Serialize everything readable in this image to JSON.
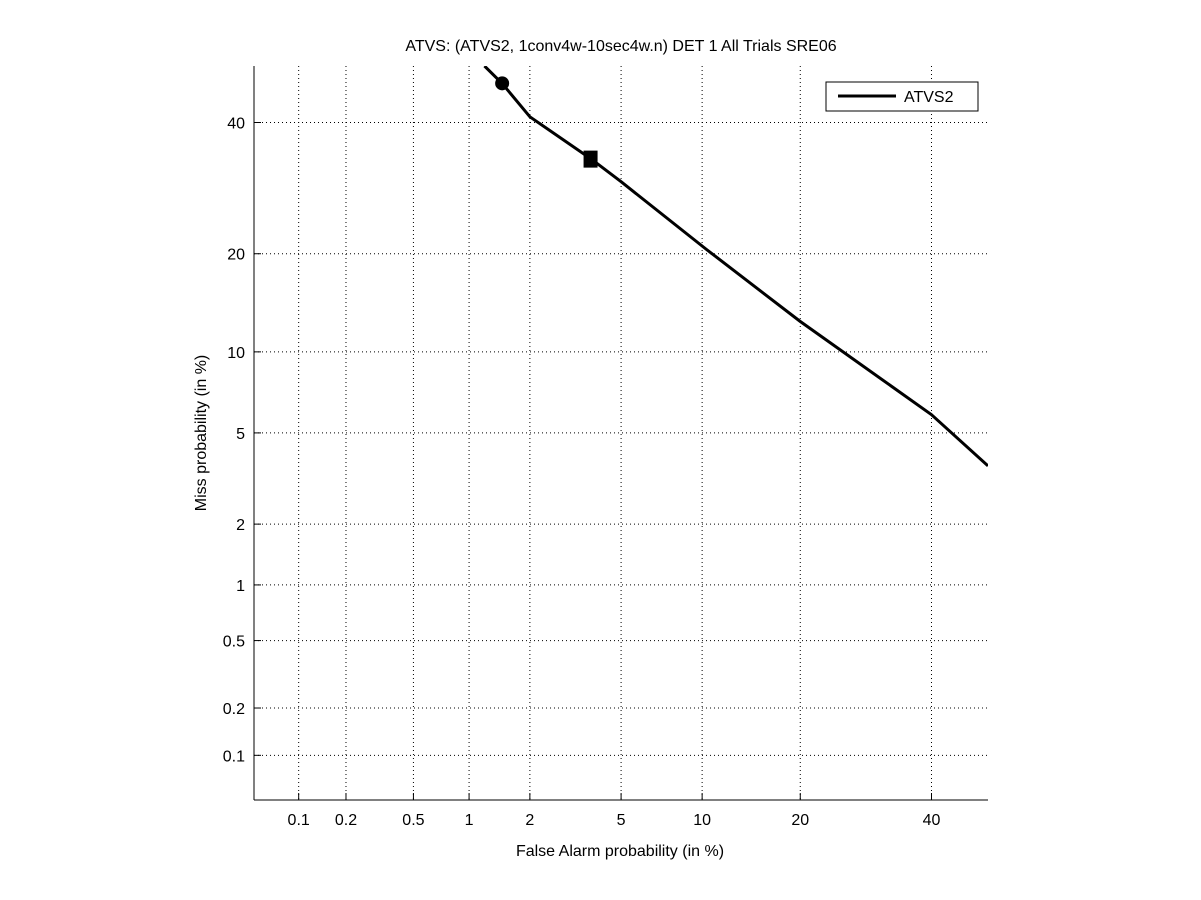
{
  "chart_data": {
    "type": "line",
    "title": "ATVS: (ATVS2, 1conv4w-10sec4w.n) DET 1 All Trials SRE06",
    "xlabel": "False Alarm probability (in %)",
    "ylabel": "Miss probability (in %)",
    "scale": "normal-deviate",
    "xlim": [
      0.05,
      50
    ],
    "ylim": [
      0.05,
      50
    ],
    "xticks": [
      0.1,
      0.2,
      0.5,
      1,
      2,
      5,
      10,
      20,
      40
    ],
    "xtick_labels": [
      "0.1",
      "0.2",
      "0.5",
      "1",
      "2",
      "5",
      "10",
      "20",
      "40"
    ],
    "yticks": [
      0.1,
      0.2,
      0.5,
      1,
      2,
      5,
      10,
      20,
      40
    ],
    "ytick_labels": [
      "0.1",
      "0.2",
      "0.5",
      "1",
      "2",
      "5",
      "10",
      "20",
      "40"
    ],
    "grid": true,
    "legend_position": "top-right",
    "series": [
      {
        "name": "ATVS2",
        "color": "#000000",
        "x": [
          1.2,
          1.47,
          2.0,
          3.74,
          5.0,
          10.3,
          20.0,
          40.0,
          50.0
        ],
        "y": [
          50,
          46.9,
          41,
          33.9,
          30.2,
          20.6,
          12.6,
          5.9,
          3.65
        ]
      }
    ],
    "markers": [
      {
        "shape": "circle",
        "x": 1.47,
        "y": 46.9
      },
      {
        "shape": "square",
        "x": 3.74,
        "y": 33.9
      }
    ]
  }
}
